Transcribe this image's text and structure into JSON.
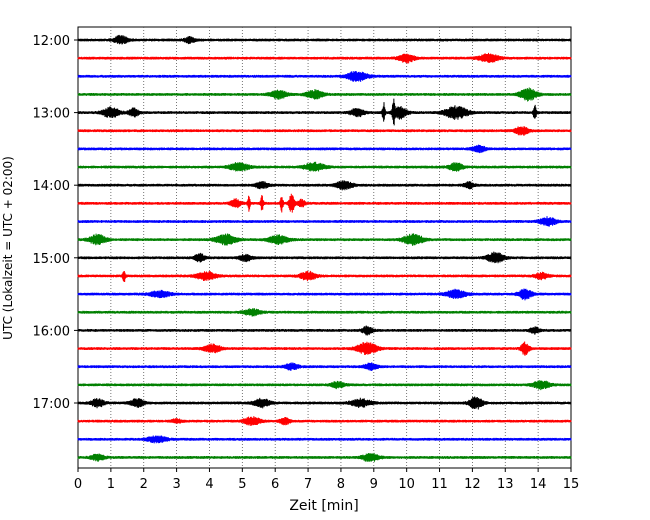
{
  "chart_data": {
    "type": "line",
    "title": "",
    "xlabel": "Zeit  [min]",
    "ylabel": "UTC (Lokalzeit = UTC + 02:00)",
    "xlim": [
      0,
      15
    ],
    "x_ticks": [
      0,
      1,
      2,
      3,
      4,
      5,
      6,
      7,
      8,
      9,
      10,
      11,
      12,
      13,
      14,
      15
    ],
    "y_ticks": [
      "12:00",
      "13:00",
      "14:00",
      "15:00",
      "16:00",
      "17:00"
    ],
    "y_tick_rows": [
      0,
      4,
      8,
      12,
      16,
      20
    ],
    "grid": "vertical dotted",
    "colors": [
      "#000000",
      "#ff0000",
      "#0000ff",
      "#008000"
    ],
    "rows": [
      {
        "start": "12:00",
        "color": "#000000",
        "events": [
          {
            "t": 1.3,
            "amp": 4,
            "w": 0.2
          },
          {
            "t": 3.4,
            "amp": 3,
            "w": 0.15
          }
        ]
      },
      {
        "start": "12:15",
        "color": "#ff0000",
        "events": [
          {
            "t": 10.0,
            "amp": 4,
            "w": 0.25
          },
          {
            "t": 12.5,
            "amp": 4,
            "w": 0.3
          }
        ]
      },
      {
        "start": "12:30",
        "color": "#0000ff",
        "events": [
          {
            "t": 8.5,
            "amp": 5,
            "w": 0.3
          }
        ]
      },
      {
        "start": "12:45",
        "color": "#008000",
        "events": [
          {
            "t": 6.1,
            "amp": 4,
            "w": 0.25
          },
          {
            "t": 7.2,
            "amp": 4,
            "w": 0.25
          },
          {
            "t": 13.7,
            "amp": 6,
            "w": 0.25
          }
        ]
      },
      {
        "start": "13:00",
        "color": "#000000",
        "events": [
          {
            "t": 1.0,
            "amp": 5,
            "w": 0.25
          },
          {
            "t": 1.7,
            "amp": 4,
            "w": 0.15
          },
          {
            "t": 8.5,
            "amp": 4,
            "w": 0.2
          },
          {
            "t": 9.3,
            "amp": 10,
            "w": 0.04
          },
          {
            "t": 9.6,
            "amp": 12,
            "w": 0.04
          },
          {
            "t": 9.8,
            "amp": 6,
            "w": 0.2
          },
          {
            "t": 11.5,
            "amp": 6,
            "w": 0.35
          },
          {
            "t": 13.9,
            "amp": 9,
            "w": 0.04
          }
        ]
      },
      {
        "start": "13:15",
        "color": "#ff0000",
        "events": [
          {
            "t": 13.5,
            "amp": 4,
            "w": 0.2
          }
        ]
      },
      {
        "start": "13:30",
        "color": "#0000ff",
        "events": [
          {
            "t": 12.2,
            "amp": 3,
            "w": 0.2
          }
        ]
      },
      {
        "start": "13:45",
        "color": "#008000",
        "events": [
          {
            "t": 4.9,
            "amp": 4,
            "w": 0.3
          },
          {
            "t": 7.2,
            "amp": 4,
            "w": 0.3
          },
          {
            "t": 11.5,
            "amp": 4,
            "w": 0.2
          }
        ]
      },
      {
        "start": "14:00",
        "color": "#000000",
        "events": [
          {
            "t": 5.6,
            "amp": 3,
            "w": 0.2
          },
          {
            "t": 8.1,
            "amp": 4,
            "w": 0.25
          },
          {
            "t": 11.9,
            "amp": 3,
            "w": 0.15
          }
        ]
      },
      {
        "start": "14:15",
        "color": "#ff0000",
        "events": [
          {
            "t": 4.8,
            "amp": 4,
            "w": 0.15
          },
          {
            "t": 5.2,
            "amp": 7,
            "w": 0.04
          },
          {
            "t": 5.6,
            "amp": 8,
            "w": 0.04
          },
          {
            "t": 6.2,
            "amp": 8,
            "w": 0.04
          },
          {
            "t": 6.5,
            "amp": 10,
            "w": 0.08
          },
          {
            "t": 6.8,
            "amp": 4,
            "w": 0.1
          }
        ]
      },
      {
        "start": "14:30",
        "color": "#0000ff",
        "events": [
          {
            "t": 14.3,
            "amp": 4,
            "w": 0.25
          }
        ]
      },
      {
        "start": "14:45",
        "color": "#008000",
        "events": [
          {
            "t": 0.6,
            "amp": 5,
            "w": 0.25
          },
          {
            "t": 4.5,
            "amp": 5,
            "w": 0.3
          },
          {
            "t": 6.1,
            "amp": 4,
            "w": 0.3
          },
          {
            "t": 10.2,
            "amp": 5,
            "w": 0.3
          }
        ]
      },
      {
        "start": "15:00",
        "color": "#000000",
        "events": [
          {
            "t": 3.7,
            "amp": 4,
            "w": 0.15
          },
          {
            "t": 5.1,
            "amp": 3,
            "w": 0.2
          },
          {
            "t": 12.7,
            "amp": 5,
            "w": 0.25
          }
        ]
      },
      {
        "start": "15:15",
        "color": "#ff0000",
        "events": [
          {
            "t": 1.4,
            "amp": 6,
            "w": 0.04
          },
          {
            "t": 3.9,
            "amp": 4,
            "w": 0.3
          },
          {
            "t": 7.0,
            "amp": 4,
            "w": 0.25
          },
          {
            "t": 14.1,
            "amp": 3,
            "w": 0.2
          }
        ]
      },
      {
        "start": "15:30",
        "color": "#0000ff",
        "events": [
          {
            "t": 2.5,
            "amp": 3,
            "w": 0.3
          },
          {
            "t": 11.5,
            "amp": 4,
            "w": 0.3
          },
          {
            "t": 13.6,
            "amp": 5,
            "w": 0.2
          }
        ]
      },
      {
        "start": "15:45",
        "color": "#008000",
        "events": [
          {
            "t": 5.3,
            "amp": 3,
            "w": 0.25
          }
        ]
      },
      {
        "start": "16:00",
        "color": "#000000",
        "events": [
          {
            "t": 8.8,
            "amp": 4,
            "w": 0.15
          },
          {
            "t": 13.9,
            "amp": 3,
            "w": 0.15
          }
        ]
      },
      {
        "start": "16:15",
        "color": "#ff0000",
        "events": [
          {
            "t": 4.1,
            "amp": 4,
            "w": 0.25
          },
          {
            "t": 8.8,
            "amp": 6,
            "w": 0.3
          },
          {
            "t": 13.6,
            "amp": 6,
            "w": 0.12
          }
        ]
      },
      {
        "start": "16:30",
        "color": "#0000ff",
        "events": [
          {
            "t": 6.5,
            "amp": 3,
            "w": 0.2
          },
          {
            "t": 8.9,
            "amp": 3,
            "w": 0.2
          }
        ]
      },
      {
        "start": "16:45",
        "color": "#008000",
        "events": [
          {
            "t": 7.9,
            "amp": 3,
            "w": 0.2
          },
          {
            "t": 14.1,
            "amp": 4,
            "w": 0.25
          }
        ]
      },
      {
        "start": "17:00",
        "color": "#000000",
        "events": [
          {
            "t": 0.6,
            "amp": 4,
            "w": 0.2
          },
          {
            "t": 1.8,
            "amp": 4,
            "w": 0.2
          },
          {
            "t": 5.6,
            "amp": 4,
            "w": 0.25
          },
          {
            "t": 8.6,
            "amp": 4,
            "w": 0.3
          },
          {
            "t": 12.1,
            "amp": 6,
            "w": 0.2
          }
        ]
      },
      {
        "start": "17:15",
        "color": "#ff0000",
        "events": [
          {
            "t": 5.3,
            "amp": 4,
            "w": 0.25
          },
          {
            "t": 6.3,
            "amp": 3,
            "w": 0.15
          },
          {
            "t": 3.0,
            "amp": 2,
            "w": 0.15
          }
        ]
      },
      {
        "start": "17:30",
        "color": "#0000ff",
        "events": [
          {
            "t": 2.4,
            "amp": 3,
            "w": 0.3
          }
        ]
      },
      {
        "start": "17:45",
        "color": "#008000",
        "events": [
          {
            "t": 0.6,
            "amp": 3,
            "w": 0.2
          },
          {
            "t": 8.9,
            "amp": 4,
            "w": 0.25
          }
        ]
      }
    ]
  }
}
